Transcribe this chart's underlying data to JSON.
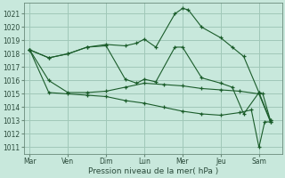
{
  "title": "",
  "xlabel": "Pression niveau de la mer( hPa )",
  "ylabel": "",
  "background_color": "#c8e8dc",
  "grid_color": "#a0c8b8",
  "line_color": "#1a5c2a",
  "ylim": [
    1010.5,
    1021.8
  ],
  "yticks": [
    1011,
    1012,
    1013,
    1014,
    1015,
    1016,
    1017,
    1018,
    1019,
    1020,
    1021
  ],
  "xtick_labels": [
    "Mar",
    "Ven",
    "Dim",
    "Lun",
    "Mer",
    "Jeu",
    "Sam"
  ],
  "xtick_positions": [
    0,
    1,
    2,
    3,
    4,
    5,
    6
  ],
  "xlim": [
    -0.15,
    6.6
  ],
  "series": [
    {
      "x": [
        0,
        0.5,
        1.0,
        1.5,
        2.0,
        2.5,
        2.8,
        3.0,
        3.3,
        3.8,
        4.0,
        4.15,
        4.5,
        5.0,
        5.3,
        5.6,
        6.0,
        6.1,
        6.3
      ],
      "y": [
        1018.3,
        1017.7,
        1018.0,
        1018.5,
        1018.7,
        1018.6,
        1018.8,
        1019.1,
        1018.5,
        1021.0,
        1021.4,
        1021.3,
        1020.0,
        1019.2,
        1018.5,
        1017.8,
        1015.1,
        1015.0,
        1013.0
      ],
      "marker": "+"
    },
    {
      "x": [
        0,
        0.5,
        1.0,
        1.5,
        2.0,
        2.5,
        2.8,
        3.0,
        3.3,
        3.8,
        4.0,
        4.5,
        5.0,
        5.3,
        5.6,
        6.0,
        6.3
      ],
      "y": [
        1018.3,
        1017.7,
        1018.0,
        1018.5,
        1018.6,
        1016.1,
        1015.8,
        1016.1,
        1015.9,
        1018.5,
        1018.5,
        1016.2,
        1015.8,
        1015.5,
        1013.5,
        1015.1,
        1013.0
      ],
      "marker": "+"
    },
    {
      "x": [
        0,
        0.5,
        1.0,
        1.5,
        2.0,
        2.5,
        3.0,
        3.5,
        4.0,
        4.5,
        5.0,
        5.5,
        6.0,
        6.3
      ],
      "y": [
        1018.3,
        1016.0,
        1015.1,
        1015.1,
        1015.2,
        1015.5,
        1015.8,
        1015.7,
        1015.6,
        1015.4,
        1015.3,
        1015.2,
        1015.0,
        1012.9
      ],
      "marker": "+"
    },
    {
      "x": [
        0,
        0.5,
        1.0,
        1.5,
        2.0,
        2.5,
        3.0,
        3.5,
        4.0,
        4.5,
        5.0,
        5.5,
        5.8,
        6.0,
        6.15,
        6.3
      ],
      "y": [
        1018.3,
        1015.1,
        1015.0,
        1014.9,
        1014.8,
        1014.5,
        1014.3,
        1014.0,
        1013.7,
        1013.5,
        1013.4,
        1013.6,
        1013.8,
        1011.0,
        1012.9,
        1012.9
      ],
      "marker": "+"
    }
  ],
  "vlines_x": [
    0,
    1,
    2,
    3,
    4,
    5,
    6
  ],
  "figsize": [
    3.2,
    2.0
  ],
  "dpi": 100
}
